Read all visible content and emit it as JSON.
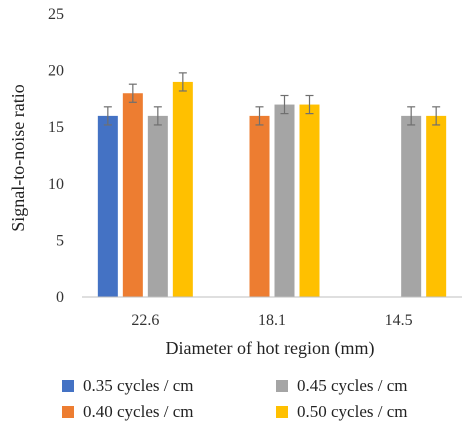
{
  "chart_data": {
    "type": "bar",
    "xlabel": "Diameter of hot region (mm)",
    "ylabel": "Signal-to-noise ratio",
    "ylim": [
      0,
      25
    ],
    "yticks": [
      0,
      5,
      10,
      15,
      20,
      25
    ],
    "categories": [
      "22.6",
      "18.1",
      "14.5"
    ],
    "error": 0.8,
    "grid": false,
    "legend_position": "bottom",
    "series": [
      {
        "name": "0.35 cycles / cm",
        "color": "#4472C4",
        "values": [
          16,
          null,
          null
        ]
      },
      {
        "name": "0.40 cycles / cm",
        "color": "#ED7D31",
        "values": [
          18,
          16,
          null
        ]
      },
      {
        "name": "0.45 cycles / cm",
        "color": "#A5A5A5",
        "values": [
          16,
          17,
          16
        ]
      },
      {
        "name": "0.50 cycles / cm",
        "color": "#FFC000",
        "values": [
          19,
          17,
          16
        ]
      }
    ]
  }
}
